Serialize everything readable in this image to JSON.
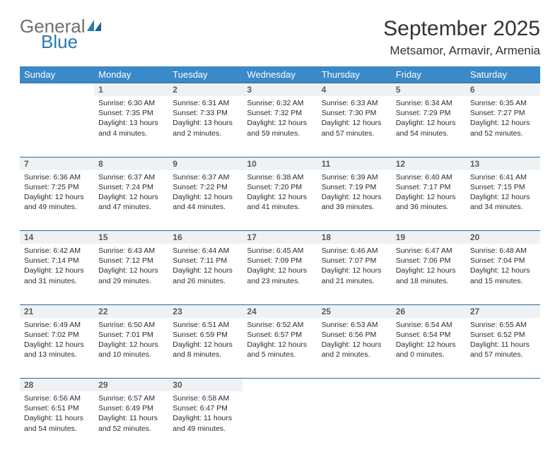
{
  "brand": {
    "name1": "General",
    "name2": "Blue"
  },
  "title": "September 2025",
  "location": "Metsamor, Armavir, Armenia",
  "colors": {
    "header_bg": "#3a89c9",
    "header_text": "#ffffff",
    "daynum_bg": "#eef2f5",
    "row_border": "#2b6a9b",
    "logo_gray": "#6f6f6f",
    "logo_blue": "#2a7ab0"
  },
  "weekdays": [
    "Sunday",
    "Monday",
    "Tuesday",
    "Wednesday",
    "Thursday",
    "Friday",
    "Saturday"
  ],
  "weeks": [
    {
      "nums": [
        "",
        "1",
        "2",
        "3",
        "4",
        "5",
        "6"
      ],
      "cells": [
        "",
        "Sunrise: 6:30 AM\nSunset: 7:35 PM\nDaylight: 13 hours and 4 minutes.",
        "Sunrise: 6:31 AM\nSunset: 7:33 PM\nDaylight: 13 hours and 2 minutes.",
        "Sunrise: 6:32 AM\nSunset: 7:32 PM\nDaylight: 12 hours and 59 minutes.",
        "Sunrise: 6:33 AM\nSunset: 7:30 PM\nDaylight: 12 hours and 57 minutes.",
        "Sunrise: 6:34 AM\nSunset: 7:29 PM\nDaylight: 12 hours and 54 minutes.",
        "Sunrise: 6:35 AM\nSunset: 7:27 PM\nDaylight: 12 hours and 52 minutes."
      ]
    },
    {
      "nums": [
        "7",
        "8",
        "9",
        "10",
        "11",
        "12",
        "13"
      ],
      "cells": [
        "Sunrise: 6:36 AM\nSunset: 7:25 PM\nDaylight: 12 hours and 49 minutes.",
        "Sunrise: 6:37 AM\nSunset: 7:24 PM\nDaylight: 12 hours and 47 minutes.",
        "Sunrise: 6:37 AM\nSunset: 7:22 PM\nDaylight: 12 hours and 44 minutes.",
        "Sunrise: 6:38 AM\nSunset: 7:20 PM\nDaylight: 12 hours and 41 minutes.",
        "Sunrise: 6:39 AM\nSunset: 7:19 PM\nDaylight: 12 hours and 39 minutes.",
        "Sunrise: 6:40 AM\nSunset: 7:17 PM\nDaylight: 12 hours and 36 minutes.",
        "Sunrise: 6:41 AM\nSunset: 7:15 PM\nDaylight: 12 hours and 34 minutes."
      ]
    },
    {
      "nums": [
        "14",
        "15",
        "16",
        "17",
        "18",
        "19",
        "20"
      ],
      "cells": [
        "Sunrise: 6:42 AM\nSunset: 7:14 PM\nDaylight: 12 hours and 31 minutes.",
        "Sunrise: 6:43 AM\nSunset: 7:12 PM\nDaylight: 12 hours and 29 minutes.",
        "Sunrise: 6:44 AM\nSunset: 7:11 PM\nDaylight: 12 hours and 26 minutes.",
        "Sunrise: 6:45 AM\nSunset: 7:09 PM\nDaylight: 12 hours and 23 minutes.",
        "Sunrise: 6:46 AM\nSunset: 7:07 PM\nDaylight: 12 hours and 21 minutes.",
        "Sunrise: 6:47 AM\nSunset: 7:06 PM\nDaylight: 12 hours and 18 minutes.",
        "Sunrise: 6:48 AM\nSunset: 7:04 PM\nDaylight: 12 hours and 15 minutes."
      ]
    },
    {
      "nums": [
        "21",
        "22",
        "23",
        "24",
        "25",
        "26",
        "27"
      ],
      "cells": [
        "Sunrise: 6:49 AM\nSunset: 7:02 PM\nDaylight: 12 hours and 13 minutes.",
        "Sunrise: 6:50 AM\nSunset: 7:01 PM\nDaylight: 12 hours and 10 minutes.",
        "Sunrise: 6:51 AM\nSunset: 6:59 PM\nDaylight: 12 hours and 8 minutes.",
        "Sunrise: 6:52 AM\nSunset: 6:57 PM\nDaylight: 12 hours and 5 minutes.",
        "Sunrise: 6:53 AM\nSunset: 6:56 PM\nDaylight: 12 hours and 2 minutes.",
        "Sunrise: 6:54 AM\nSunset: 6:54 PM\nDaylight: 12 hours and 0 minutes.",
        "Sunrise: 6:55 AM\nSunset: 6:52 PM\nDaylight: 11 hours and 57 minutes."
      ]
    },
    {
      "nums": [
        "28",
        "29",
        "30",
        "",
        "",
        "",
        ""
      ],
      "cells": [
        "Sunrise: 6:56 AM\nSunset: 6:51 PM\nDaylight: 11 hours and 54 minutes.",
        "Sunrise: 6:57 AM\nSunset: 6:49 PM\nDaylight: 11 hours and 52 minutes.",
        "Sunrise: 6:58 AM\nSunset: 6:47 PM\nDaylight: 11 hours and 49 minutes.",
        "",
        "",
        "",
        ""
      ]
    }
  ]
}
